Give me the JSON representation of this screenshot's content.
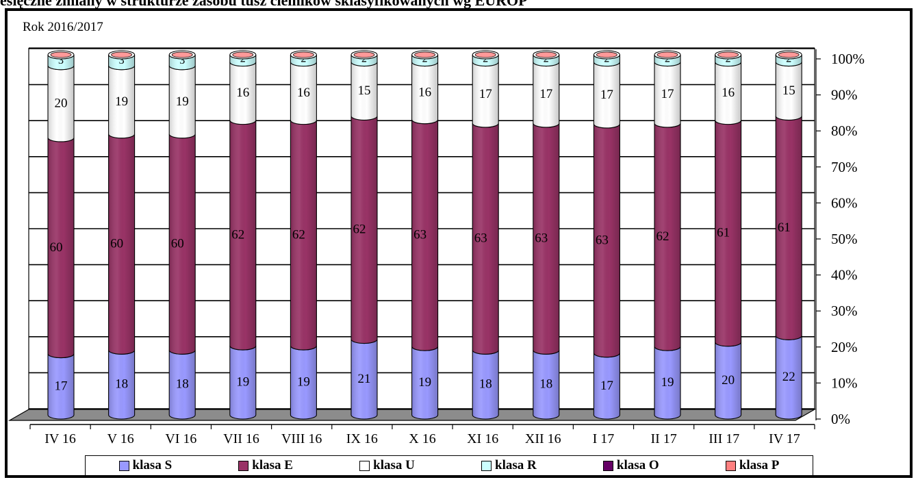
{
  "page": {
    "title": "esięczne zmiany w strukturze zasobu tusz cielników sklasyfikowanych wg EUROP",
    "subtitle": "Rok 2016/2017"
  },
  "chart_data": {
    "type": "bar",
    "stacked": true,
    "percent_stacked": true,
    "categories": [
      "IV 16",
      "V 16",
      "VI 16",
      "VII 16",
      "VIII 16",
      "IX 16",
      "X 16",
      "XI 16",
      "XII 16",
      "I 17",
      "II 17",
      "III 17",
      "IV 17"
    ],
    "series": [
      {
        "name": "klasa S",
        "color": "#9999ff",
        "values": [
          17,
          18,
          18,
          19,
          19,
          21,
          19,
          18,
          18,
          17,
          19,
          20,
          22
        ]
      },
      {
        "name": "klasa E",
        "color": "#993366",
        "values": [
          60,
          60,
          60,
          62,
          62,
          62,
          63,
          63,
          63,
          63,
          62,
          61,
          61
        ]
      },
      {
        "name": "klasa U",
        "color": "#ffffff",
        "values": [
          20,
          19,
          19,
          16,
          16,
          15,
          16,
          17,
          17,
          17,
          17,
          16,
          15
        ]
      },
      {
        "name": "klasa R",
        "color": "#ccffff",
        "values": [
          3,
          3,
          3,
          2,
          2,
          2,
          2,
          2,
          2,
          2,
          2,
          2,
          2
        ]
      },
      {
        "name": "klasa O",
        "color": "#660066",
        "values": [
          0,
          0,
          0,
          0,
          0,
          0,
          0,
          0,
          0,
          0,
          0,
          0,
          0
        ]
      },
      {
        "name": "klasa P",
        "color": "#ff8080",
        "values": [
          0,
          0,
          0,
          0,
          0,
          0,
          0,
          0,
          0,
          0,
          0,
          0,
          0
        ]
      }
    ],
    "y_tick_labels": [
      "0%",
      "10%",
      "20%",
      "30%",
      "40%",
      "50%",
      "60%",
      "70%",
      "80%",
      "90%",
      "100%"
    ],
    "ylim": [
      0,
      100
    ],
    "y_axis_side": "right",
    "grid": true,
    "legend_position": "bottom",
    "style": "3d-cylinder"
  }
}
